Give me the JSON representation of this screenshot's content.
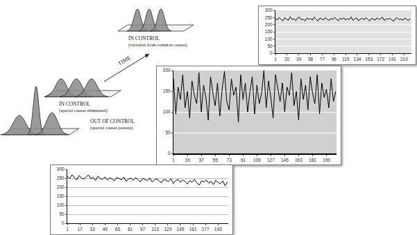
{
  "diagram": {
    "time_label": "TIME",
    "stages": [
      {
        "label": "OUT OF CONTROL",
        "note": "(special causes present)"
      },
      {
        "label": "IN CONTROL",
        "note": "(special causes eliminated)"
      },
      {
        "label": "IN CONTROL",
        "note": "(variation from common causes)"
      }
    ]
  },
  "chart_data": [
    {
      "type": "line",
      "color": "#000000",
      "grid": true,
      "x": [
        1,
        4,
        7,
        10,
        13,
        16,
        19,
        22,
        25,
        28,
        31,
        34,
        37,
        40,
        43,
        46,
        49,
        52,
        55,
        58,
        61,
        64,
        67,
        70,
        73,
        76,
        79,
        82,
        85,
        88,
        91,
        94,
        97,
        100,
        103,
        106,
        109,
        112,
        115,
        118,
        121,
        124,
        127,
        130,
        133,
        136,
        139,
        142,
        145,
        148,
        151,
        154,
        157,
        160,
        163,
        166,
        169,
        172,
        175,
        178,
        181,
        184,
        187,
        190,
        193,
        196,
        199,
        202,
        205,
        208,
        211,
        214,
        217,
        220
      ],
      "values": [
        245,
        232,
        251,
        238,
        226,
        249,
        241,
        230,
        255,
        236,
        243,
        228,
        247,
        252,
        234,
        240,
        226,
        248,
        237,
        244,
        231,
        253,
        239,
        225,
        246,
        242,
        233,
        250,
        238,
        229,
        244,
        236,
        251,
        241,
        227,
        245,
        238,
        249,
        232,
        243,
        236,
        254,
        230,
        241,
        247,
        228,
        239,
        245,
        233,
        250,
        237,
        226,
        244,
        240,
        231,
        248,
        235,
        243,
        252,
        229,
        241,
        238,
        246,
        233,
        224,
        243,
        249,
        235,
        240,
        231,
        247,
        238,
        229,
        244
      ],
      "xlim": [
        1,
        222
      ],
      "ylim": [
        0,
        300
      ],
      "xticks": [
        1,
        20,
        39,
        58,
        77,
        96,
        115,
        134,
        153,
        172,
        191,
        210
      ],
      "yticks": [
        0,
        50,
        100,
        150,
        200,
        250,
        300
      ]
    },
    {
      "type": "line",
      "color": "#000000",
      "grid": true,
      "x": [
        1,
        4,
        7,
        10,
        13,
        16,
        19,
        22,
        25,
        28,
        31,
        34,
        37,
        40,
        43,
        46,
        49,
        52,
        55,
        58,
        61,
        64,
        67,
        70,
        73,
        76,
        79,
        82,
        85,
        88,
        91,
        94,
        97,
        100,
        103,
        106,
        109,
        112,
        115,
        118,
        121,
        124,
        127,
        130,
        133,
        136,
        139,
        142,
        145,
        148,
        151,
        154,
        157,
        160,
        163,
        166,
        169,
        172,
        175,
        178,
        181,
        184,
        187,
        190,
        193,
        196,
        199,
        202,
        205,
        208,
        211
      ],
      "values": [
        180,
        95,
        160,
        130,
        190,
        110,
        150,
        85,
        175,
        140,
        120,
        195,
        100,
        165,
        135,
        80,
        185,
        145,
        115,
        170,
        90,
        155,
        198,
        125,
        105,
        180,
        140,
        160,
        75,
        190,
        130,
        170,
        100,
        150,
        185,
        95,
        165,
        120,
        145,
        200,
        110,
        175,
        135,
        85,
        190,
        155,
        125,
        170,
        100,
        160,
        140,
        195,
        115,
        150,
        80,
        180,
        130,
        165,
        105,
        185,
        145,
        120,
        190,
        95,
        170,
        135,
        155,
        110,
        180,
        125,
        150
      ],
      "xlim": [
        1,
        212
      ],
      "ylim": [
        0,
        200
      ],
      "xticks": [
        1,
        19,
        37,
        55,
        73,
        91,
        109,
        127,
        145,
        163,
        181,
        199
      ],
      "yticks": [
        0,
        50,
        100,
        150,
        200
      ]
    },
    {
      "type": "line",
      "color": "#000000",
      "grid": true,
      "x": [
        1,
        4,
        7,
        10,
        13,
        16,
        19,
        22,
        25,
        28,
        31,
        34,
        37,
        40,
        43,
        46,
        49,
        52,
        55,
        58,
        61,
        64,
        67,
        70,
        73,
        76,
        79,
        82,
        85,
        88,
        91,
        94,
        97,
        100,
        103,
        106,
        109,
        112,
        115,
        118,
        121,
        124,
        127,
        130,
        133,
        136,
        139,
        142,
        145,
        148,
        151,
        154,
        157,
        160,
        163,
        166,
        169,
        172,
        175,
        178,
        181,
        184,
        187,
        190,
        193,
        196,
        199,
        202,
        205
      ],
      "values": [
        262,
        248,
        270,
        255,
        241,
        266,
        252,
        245,
        259,
        268,
        247,
        256,
        238,
        262,
        250,
        244,
        258,
        240,
        253,
        247,
        236,
        255,
        249,
        242,
        257,
        233,
        246,
        251,
        239,
        254,
        243,
        230,
        250,
        245,
        237,
        252,
        229,
        241,
        247,
        235,
        226,
        244,
        239,
        232,
        248,
        221,
        237,
        243,
        228,
        240,
        233,
        218,
        238,
        229,
        244,
        225,
        212,
        236,
        230,
        241,
        223,
        234,
        215,
        239,
        227,
        220,
        236,
        208,
        231
      ],
      "xlim": [
        1,
        206
      ],
      "ylim": [
        0,
        300
      ],
      "xticks": [
        1,
        17,
        33,
        49,
        65,
        81,
        97,
        113,
        129,
        145,
        161,
        177,
        193
      ],
      "yticks": [
        0,
        50,
        100,
        150,
        200,
        250,
        300
      ]
    }
  ]
}
